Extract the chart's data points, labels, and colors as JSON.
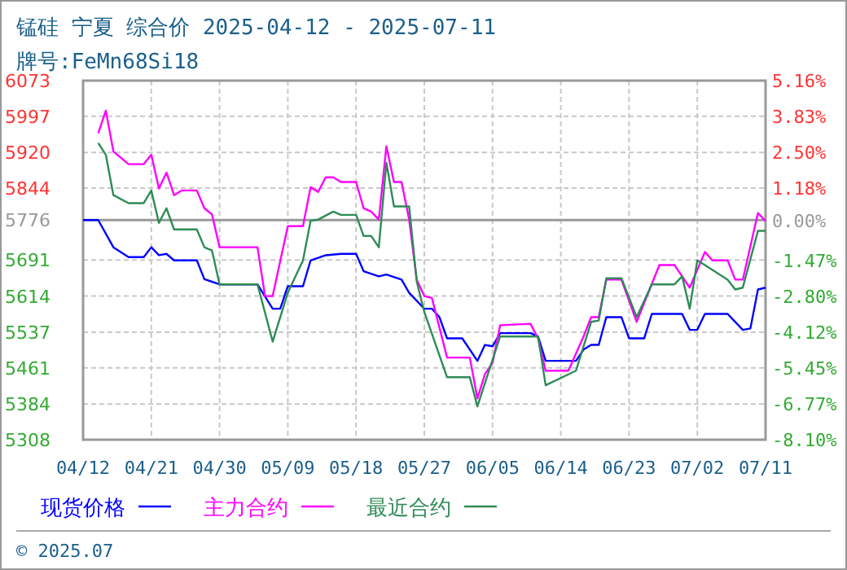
{
  "chart_data": {
    "type": "line",
    "title": "锰硅  宁夏  综合价  2025-04-12 - 2025-07-11",
    "subtitle": "牌号:FeMn68Si18",
    "annotations": [
      "© 2025.07"
    ],
    "xlim": [
      "2025-04-12",
      "2025-07-11"
    ],
    "xticks": [
      {
        "value": "2025-04-12",
        "label": "04/12"
      },
      {
        "value": "2025-04-21",
        "label": "04/21"
      },
      {
        "value": "2025-04-30",
        "label": "04/30"
      },
      {
        "value": "2025-05-09",
        "label": "05/09"
      },
      {
        "value": "2025-05-18",
        "label": "05/18"
      },
      {
        "value": "2025-05-27",
        "label": "05/27"
      },
      {
        "value": "2025-06-05",
        "label": "06/05"
      },
      {
        "value": "2025-06-14",
        "label": "06/14"
      },
      {
        "value": "2025-06-23",
        "label": "06/23"
      },
      {
        "value": "2025-07-02",
        "label": "07/02"
      },
      {
        "value": "2025-07-11",
        "label": "07/11"
      }
    ],
    "ylim": [
      5308,
      6073
    ],
    "yticks": [
      6073,
      5997,
      5920,
      5844,
      5776,
      5691,
      5614,
      5537,
      5461,
      5384,
      5308
    ],
    "y2lim": [
      -8.1,
      5.16
    ],
    "y2ticks": [
      {
        "value": 5.16,
        "label": "5.16%"
      },
      {
        "value": 3.83,
        "label": "3.83%"
      },
      {
        "value": 2.5,
        "label": "2.50%"
      },
      {
        "value": 1.18,
        "label": "1.18%"
      },
      {
        "value": 0,
        "label": "0.00%"
      },
      {
        "value": -1.47,
        "label": "-1.47%"
      },
      {
        "value": -2.8,
        "label": "-2.80%"
      },
      {
        "value": -4.12,
        "label": "-4.12%"
      },
      {
        "value": -5.45,
        "label": "-5.45%"
      },
      {
        "value": -6.77,
        "label": "-6.77%"
      },
      {
        "value": -8.1,
        "label": "-8.10%"
      }
    ],
    "ref_lines": [
      {
        "axis": "y",
        "value": 5776,
        "color": "#999999"
      }
    ],
    "grid": true,
    "legend": "bottom",
    "series": [
      {
        "name": "现货价格",
        "color": "#0000ff",
        "x": [
          "2025-04-12",
          "2025-04-14",
          "2025-04-16",
          "2025-04-18",
          "2025-04-20",
          "2025-04-21",
          "2025-04-22",
          "2025-04-23",
          "2025-04-24",
          "2025-04-27",
          "2025-04-28",
          "2025-04-30",
          "2025-05-05",
          "2025-05-07",
          "2025-05-08",
          "2025-05-09",
          "2025-05-11",
          "2025-05-12",
          "2025-05-14",
          "2025-05-16",
          "2025-05-18",
          "2025-05-19",
          "2025-05-21",
          "2025-05-22",
          "2025-05-24",
          "2025-05-25",
          "2025-05-27",
          "2025-05-28",
          "2025-05-29",
          "2025-05-30",
          "2025-06-01",
          "2025-06-03",
          "2025-06-04",
          "2025-06-05",
          "2025-06-06",
          "2025-06-10",
          "2025-06-11",
          "2025-06-12",
          "2025-06-16",
          "2025-06-17",
          "2025-06-18",
          "2025-06-19",
          "2025-06-20",
          "2025-06-22",
          "2025-06-23",
          "2025-06-25",
          "2025-06-26",
          "2025-06-30",
          "2025-07-01",
          "2025-07-02",
          "2025-07-03",
          "2025-07-06",
          "2025-07-08",
          "2025-07-09",
          "2025-07-10",
          "2025-07-11"
        ],
        "values": [
          5776,
          5776,
          5718,
          5697,
          5697,
          5718,
          5701,
          5704,
          5690,
          5690,
          5650,
          5639,
          5639,
          5587,
          5587,
          5635,
          5635,
          5690,
          5701,
          5704,
          5704,
          5667,
          5656,
          5660,
          5649,
          5621,
          5587,
          5587,
          5569,
          5524,
          5524,
          5476,
          5510,
          5507,
          5535,
          5535,
          5528,
          5476,
          5476,
          5500,
          5510,
          5510,
          5569,
          5569,
          5524,
          5524,
          5576,
          5576,
          5542,
          5542,
          5576,
          5576,
          5542,
          5545,
          5628,
          5632
        ]
      },
      {
        "name": "主力合约",
        "color": "#ff00ff",
        "x": [
          "2025-04-14",
          "2025-04-15",
          "2025-04-16",
          "2025-04-18",
          "2025-04-20",
          "2025-04-21",
          "2025-04-22",
          "2025-04-23",
          "2025-04-24",
          "2025-04-25",
          "2025-04-27",
          "2025-04-28",
          "2025-04-29",
          "2025-04-30",
          "2025-05-05",
          "2025-05-06",
          "2025-05-07",
          "2025-05-09",
          "2025-05-11",
          "2025-05-12",
          "2025-05-13",
          "2025-05-14",
          "2025-05-15",
          "2025-05-16",
          "2025-05-18",
          "2025-05-19",
          "2025-05-20",
          "2025-05-21",
          "2025-05-22",
          "2025-05-23",
          "2025-05-24",
          "2025-05-25",
          "2025-05-26",
          "2025-05-27",
          "2025-05-28",
          "2025-05-30",
          "2025-06-02",
          "2025-06-03",
          "2025-06-04",
          "2025-06-05",
          "2025-06-06",
          "2025-06-10",
          "2025-06-11",
          "2025-06-12",
          "2025-06-15",
          "2025-06-17",
          "2025-06-18",
          "2025-06-19",
          "2025-06-20",
          "2025-06-22",
          "2025-06-24",
          "2025-06-27",
          "2025-06-29",
          "2025-07-01",
          "2025-07-03",
          "2025-07-04",
          "2025-07-06",
          "2025-07-07",
          "2025-07-08",
          "2025-07-10",
          "2025-07-11"
        ],
        "values": [
          5961,
          6009,
          5922,
          5895,
          5895,
          5915,
          5843,
          5877,
          5829,
          5839,
          5839,
          5801,
          5788,
          5718,
          5718,
          5614,
          5614,
          5763,
          5763,
          5846,
          5836,
          5867,
          5867,
          5857,
          5857,
          5801,
          5794,
          5777,
          5933,
          5857,
          5857,
          5777,
          5649,
          5614,
          5610,
          5483,
          5483,
          5396,
          5448,
          5472,
          5552,
          5555,
          5524,
          5455,
          5455,
          5528,
          5569,
          5569,
          5649,
          5649,
          5559,
          5680,
          5680,
          5632,
          5708,
          5690,
          5690,
          5649,
          5649,
          5791,
          5774
        ]
      },
      {
        "name": "最近合约",
        "color": "#2e8b57",
        "x": [
          "2025-04-14",
          "2025-04-15",
          "2025-04-16",
          "2025-04-18",
          "2025-04-20",
          "2025-04-21",
          "2025-04-22",
          "2025-04-23",
          "2025-04-24",
          "2025-04-27",
          "2025-04-28",
          "2025-04-29",
          "2025-04-30",
          "2025-05-05",
          "2025-05-07",
          "2025-05-09",
          "2025-05-11",
          "2025-05-12",
          "2025-05-13",
          "2025-05-15",
          "2025-05-16",
          "2025-05-18",
          "2025-05-19",
          "2025-05-20",
          "2025-05-21",
          "2025-05-22",
          "2025-05-23",
          "2025-05-25",
          "2025-05-26",
          "2025-05-27",
          "2025-05-30",
          "2025-06-02",
          "2025-06-03",
          "2025-06-06",
          "2025-06-11",
          "2025-06-12",
          "2025-06-16",
          "2025-06-18",
          "2025-06-19",
          "2025-06-20",
          "2025-06-22",
          "2025-06-24",
          "2025-06-26",
          "2025-06-29",
          "2025-06-30",
          "2025-07-01",
          "2025-07-02",
          "2025-07-03",
          "2025-07-06",
          "2025-07-07",
          "2025-07-08",
          "2025-07-10",
          "2025-07-11"
        ],
        "values": [
          5940,
          5915,
          5829,
          5812,
          5812,
          5839,
          5770,
          5801,
          5756,
          5756,
          5718,
          5711,
          5639,
          5639,
          5517,
          5621,
          5690,
          5774,
          5777,
          5794,
          5787,
          5787,
          5742,
          5742,
          5718,
          5898,
          5805,
          5805,
          5645,
          5580,
          5441,
          5441,
          5379,
          5528,
          5528,
          5424,
          5455,
          5559,
          5562,
          5652,
          5652,
          5569,
          5639,
          5639,
          5656,
          5587,
          5690,
          5680,
          5649,
          5628,
          5632,
          5753,
          5753
        ]
      }
    ]
  }
}
